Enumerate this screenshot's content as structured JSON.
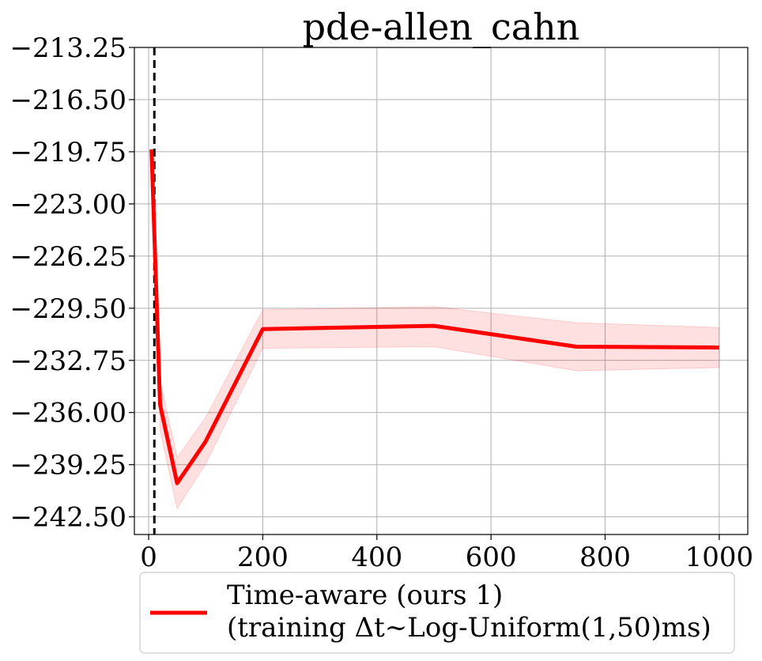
{
  "chart_data": {
    "type": "line",
    "title": "pde-allen_cahn",
    "xlabel": "",
    "ylabel": "",
    "xlim": [
      -25,
      1050
    ],
    "ylim": [
      -243.6,
      -213.25
    ],
    "x_ticks": [
      0,
      200,
      400,
      600,
      800,
      1000
    ],
    "x_tick_labels": [
      "0",
      "200",
      "400",
      "600",
      "800",
      "1000"
    ],
    "y_ticks": [
      -213.25,
      -216.5,
      -219.75,
      -223.0,
      -226.25,
      -229.5,
      -232.75,
      -236.0,
      -239.25,
      -242.5
    ],
    "y_tick_labels": [
      "−213.25",
      "−216.50",
      "−219.75",
      "−223.00",
      "−226.25",
      "−229.50",
      "−232.75",
      "−236.00",
      "−239.25",
      "−242.50"
    ],
    "grid": true,
    "legend_position": "below",
    "vline_x": 10,
    "series": [
      {
        "name": "Time-aware (ours 1)\n(training Δt~Log-Uniform(1,50)ms)",
        "color": "#ff0000",
        "band_color": "#ff0000",
        "x": [
          5,
          20,
          50,
          100,
          200,
          500,
          750,
          1000
        ],
        "y": [
          -219.6,
          -235.5,
          -240.4,
          -237.8,
          -230.8,
          -230.6,
          -231.9,
          -231.95
        ],
        "upper": [
          -219.6,
          -234.0,
          -238.8,
          -236.3,
          -229.6,
          -229.4,
          -230.4,
          -230.7
        ],
        "lower": [
          -219.6,
          -237.1,
          -242.0,
          -239.2,
          -232.0,
          -231.9,
          -233.4,
          -233.2
        ]
      }
    ]
  }
}
